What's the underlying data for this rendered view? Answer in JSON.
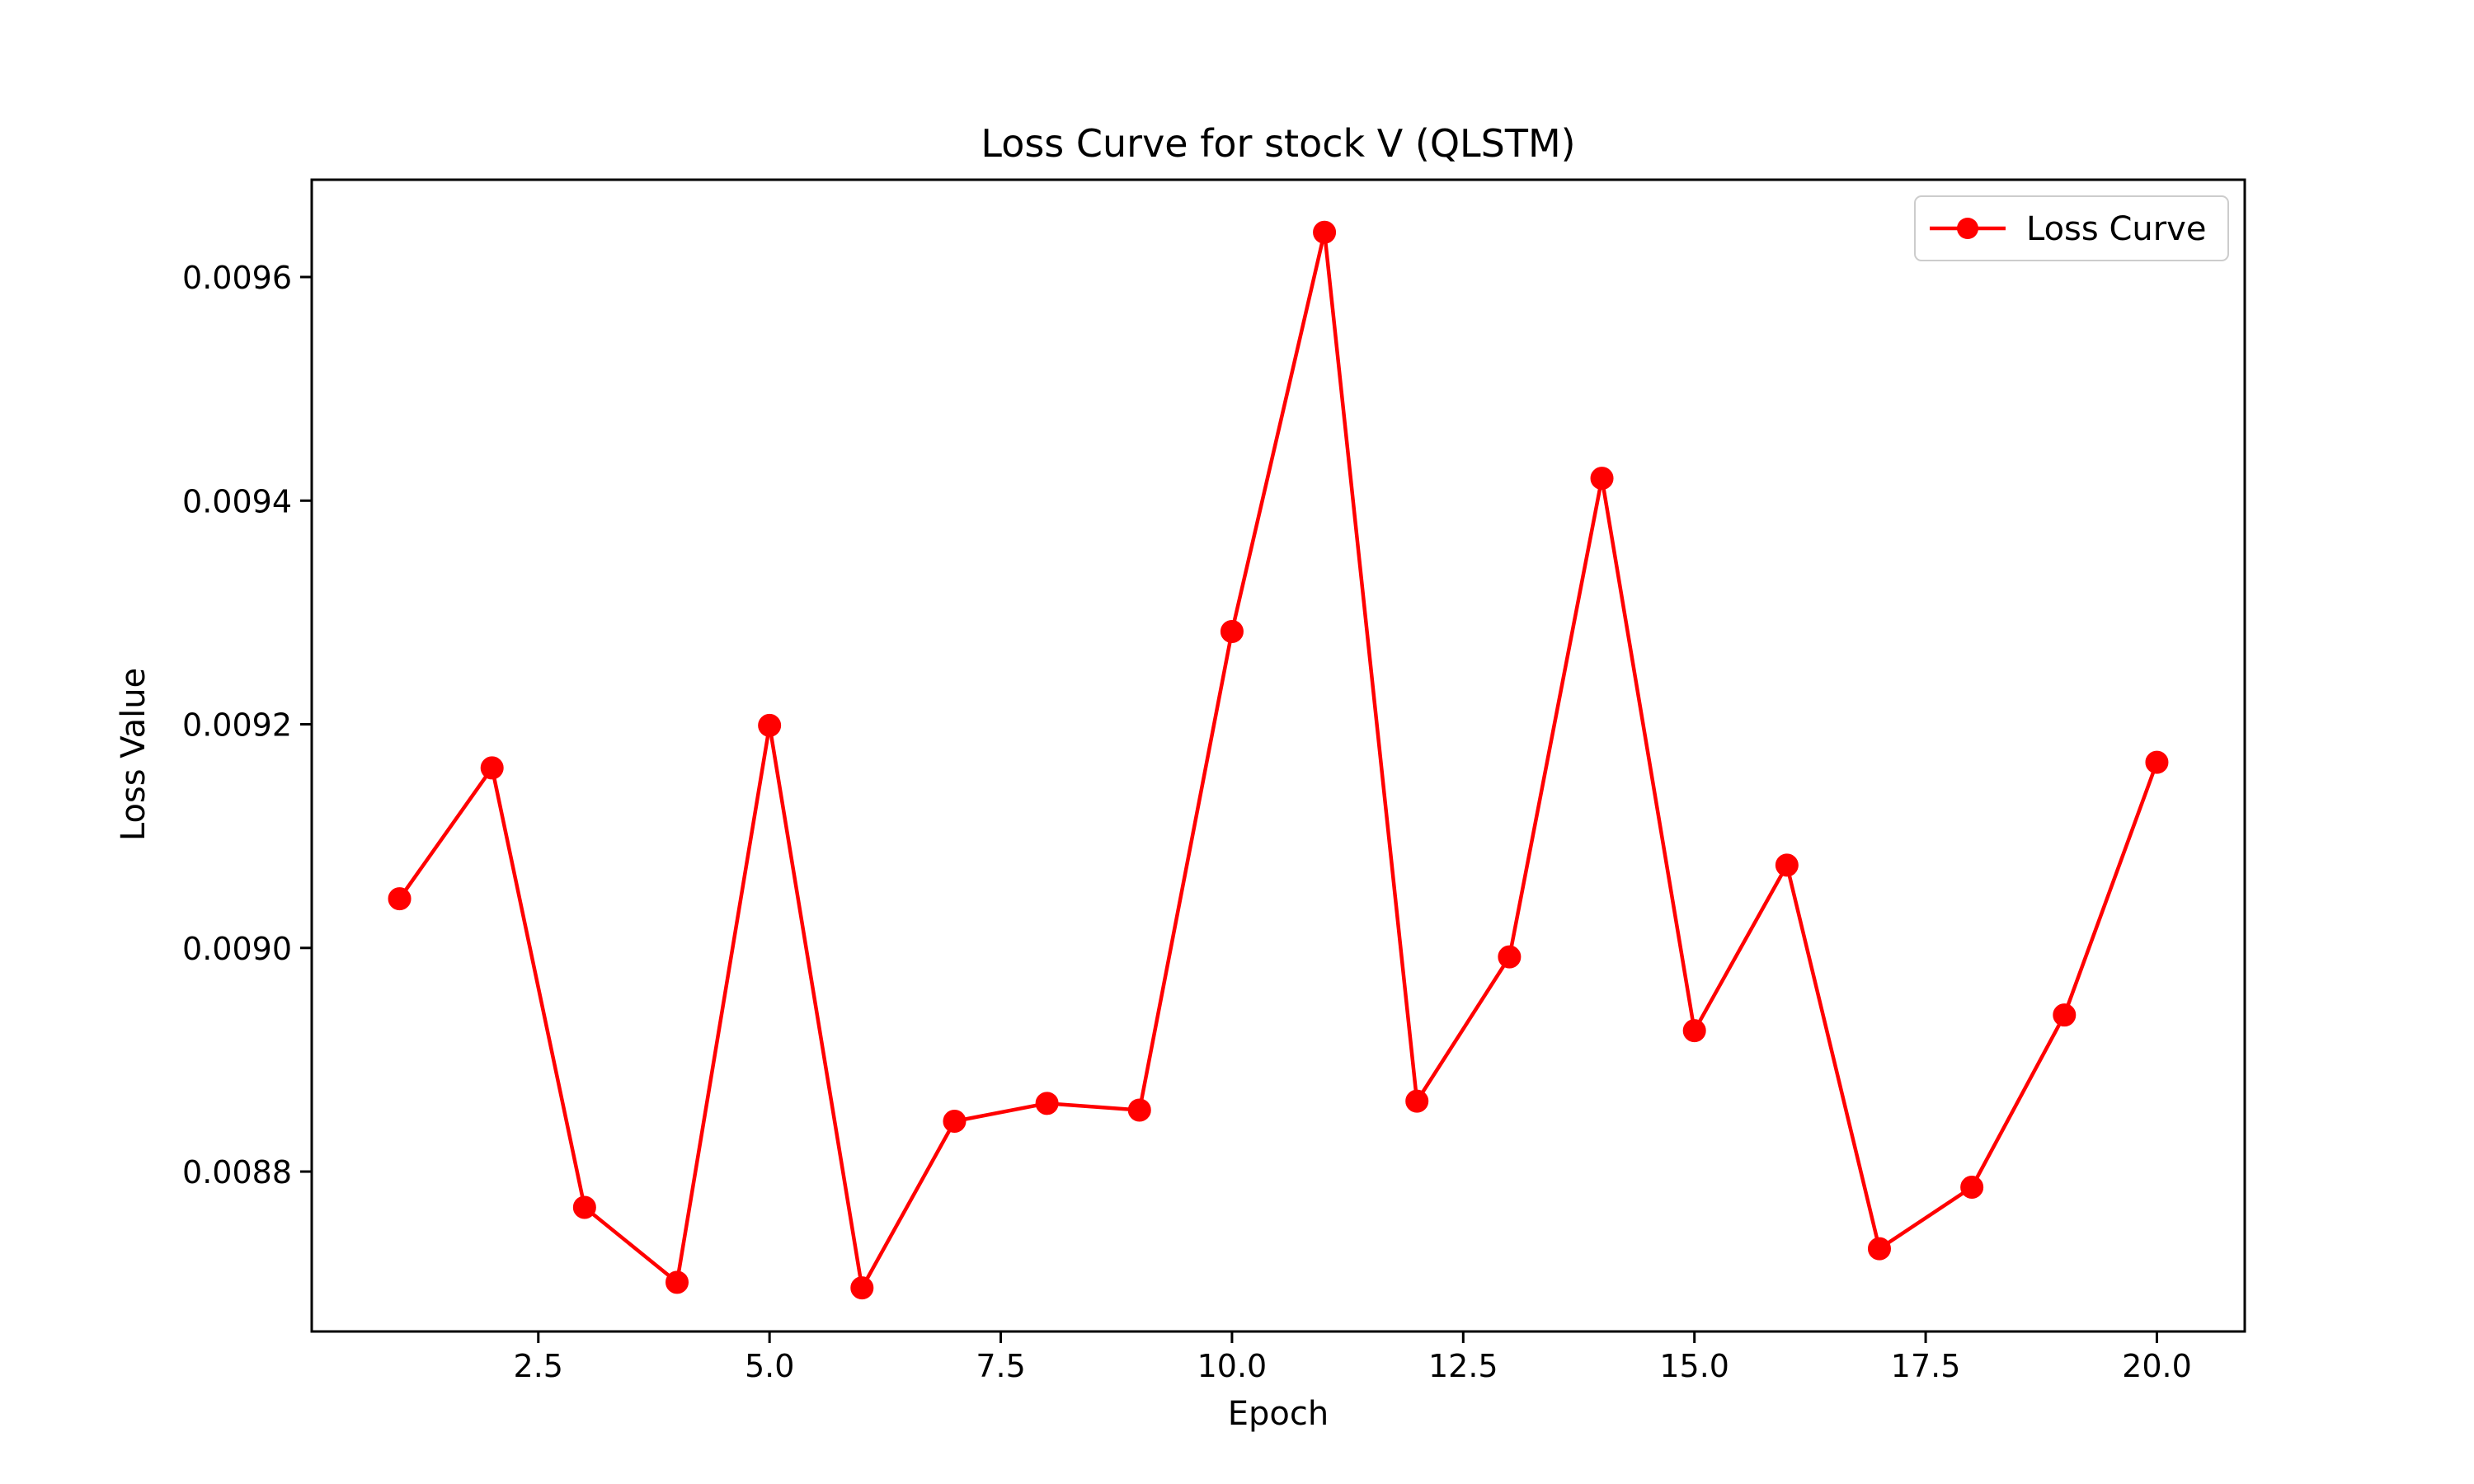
{
  "chart_data": {
    "type": "line",
    "title": "Loss Curve for stock V (QLSTM)",
    "xlabel": "Epoch",
    "ylabel": "Loss Value",
    "xlim": [
      0.05,
      20.95
    ],
    "ylim": [
      0.008657,
      0.009687
    ],
    "xticks": [
      2.5,
      5.0,
      7.5,
      10.0,
      12.5,
      15.0,
      17.5,
      20.0
    ],
    "xtick_labels": [
      "2.5",
      "5.0",
      "7.5",
      "10.0",
      "12.5",
      "15.0",
      "17.5",
      "20.0"
    ],
    "yticks": [
      0.0088,
      0.009,
      0.0092,
      0.0094,
      0.0096
    ],
    "ytick_labels": [
      "0.0088",
      "0.0090",
      "0.0092",
      "0.0094",
      "0.0096"
    ],
    "grid": false,
    "legend_position": "top-right",
    "color": "#ff0000",
    "series": [
      {
        "name": "Loss Curve",
        "x": [
          1,
          2,
          3,
          4,
          5,
          6,
          7,
          8,
          9,
          10,
          11,
          12,
          13,
          14,
          15,
          16,
          17,
          18,
          19,
          20
        ],
        "y": [
          0.009044,
          0.009161,
          0.008768,
          0.008701,
          0.009199,
          0.008696,
          0.008845,
          0.008861,
          0.008855,
          0.009283,
          0.00964,
          0.008863,
          0.008992,
          0.00942,
          0.008926,
          0.009074,
          0.008731,
          0.008786,
          0.00894,
          0.009166
        ]
      }
    ]
  }
}
